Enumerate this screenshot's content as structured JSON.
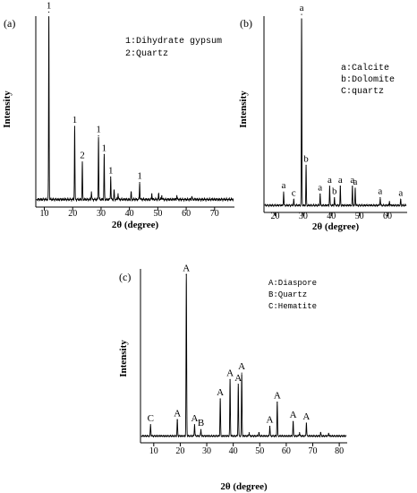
{
  "chart_data": [
    {
      "type": "line",
      "panel_label": "(a)",
      "xlabel": "2θ (degree)",
      "ylabel": "Intensity",
      "xlim": [
        7,
        77
      ],
      "xticks": [
        10,
        20,
        30,
        40,
        50,
        60,
        70
      ],
      "legend": [
        "1:Dihydrate gypsum",
        "2:Quartz"
      ],
      "legend_position": "top-right",
      "baseline_noise": 0.02,
      "peaks": [
        {
          "x": 11.6,
          "y": 1.0,
          "label": "1"
        },
        {
          "x": 20.7,
          "y": 0.39,
          "label": "1"
        },
        {
          "x": 23.4,
          "y": 0.2,
          "label": "2"
        },
        {
          "x": 26.6,
          "y": 0.04,
          "label": ""
        },
        {
          "x": 29.1,
          "y": 0.34,
          "label": "1"
        },
        {
          "x": 31.1,
          "y": 0.24,
          "label": "1"
        },
        {
          "x": 33.4,
          "y": 0.12,
          "label": "1"
        },
        {
          "x": 34.6,
          "y": 0.05,
          "label": ""
        },
        {
          "x": 36.0,
          "y": 0.03,
          "label": ""
        },
        {
          "x": 40.6,
          "y": 0.04,
          "label": ""
        },
        {
          "x": 43.6,
          "y": 0.09,
          "label": "1"
        },
        {
          "x": 47.9,
          "y": 0.03,
          "label": ""
        },
        {
          "x": 50.3,
          "y": 0.03,
          "label": ""
        },
        {
          "x": 51.4,
          "y": 0.02,
          "label": ""
        },
        {
          "x": 56.7,
          "y": 0.02,
          "label": ""
        },
        {
          "x": 62.0,
          "y": 0.015,
          "label": ""
        }
      ]
    },
    {
      "type": "line",
      "panel_label": "(b)",
      "xlabel": "2θ (degree)",
      "ylabel": "Intensity",
      "xlim": [
        16,
        67
      ],
      "xticks": [
        20,
        30,
        40,
        50,
        60
      ],
      "legend": [
        "a:Calcite",
        "b:Dolomite",
        "C:quartz"
      ],
      "legend_position": "top-right",
      "baseline_noise": 0.015,
      "peaks": [
        {
          "x": 23.0,
          "y": 0.07,
          "label": "a"
        },
        {
          "x": 26.6,
          "y": 0.03,
          "label": "c"
        },
        {
          "x": 29.4,
          "y": 1.0,
          "label": "a"
        },
        {
          "x": 31.0,
          "y": 0.21,
          "label": "b"
        },
        {
          "x": 36.0,
          "y": 0.06,
          "label": "a"
        },
        {
          "x": 39.4,
          "y": 0.1,
          "label": "a"
        },
        {
          "x": 41.1,
          "y": 0.04,
          "label": "b"
        },
        {
          "x": 43.2,
          "y": 0.1,
          "label": "a"
        },
        {
          "x": 47.5,
          "y": 0.1,
          "label": "a"
        },
        {
          "x": 48.5,
          "y": 0.09,
          "label": "a"
        },
        {
          "x": 57.4,
          "y": 0.04,
          "label": "a"
        },
        {
          "x": 60.7,
          "y": 0.02,
          "label": ""
        },
        {
          "x": 64.7,
          "y": 0.03,
          "label": "a"
        }
      ]
    },
    {
      "type": "line",
      "panel_label": "(c)",
      "xlabel": "2θ (degree)",
      "ylabel": "Intensity",
      "xlim": [
        5,
        83
      ],
      "xticks": [
        10,
        20,
        30,
        40,
        50,
        60,
        70,
        80
      ],
      "legend": [
        "A:Diaspore",
        "B:Quartz",
        "C:Hematite"
      ],
      "legend_position": "top-right",
      "baseline_noise": 0.015,
      "peaks": [
        {
          "x": 8.8,
          "y": 0.07,
          "label": "C"
        },
        {
          "x": 18.9,
          "y": 0.1,
          "label": "A"
        },
        {
          "x": 22.3,
          "y": 1.0,
          "label": "A"
        },
        {
          "x": 25.4,
          "y": 0.07,
          "label": "A"
        },
        {
          "x": 27.8,
          "y": 0.04,
          "label": "B"
        },
        {
          "x": 35.1,
          "y": 0.23,
          "label": "A"
        },
        {
          "x": 38.8,
          "y": 0.35,
          "label": "A"
        },
        {
          "x": 41.9,
          "y": 0.32,
          "label": "A"
        },
        {
          "x": 43.2,
          "y": 0.39,
          "label": "A"
        },
        {
          "x": 46.0,
          "y": 0.02,
          "label": ""
        },
        {
          "x": 49.7,
          "y": 0.02,
          "label": ""
        },
        {
          "x": 53.8,
          "y": 0.06,
          "label": "A"
        },
        {
          "x": 56.6,
          "y": 0.21,
          "label": "A"
        },
        {
          "x": 62.6,
          "y": 0.09,
          "label": "A"
        },
        {
          "x": 65.0,
          "y": 0.02,
          "label": ""
        },
        {
          "x": 67.6,
          "y": 0.08,
          "label": "A"
        },
        {
          "x": 73.0,
          "y": 0.02,
          "label": ""
        },
        {
          "x": 76.0,
          "y": 0.015,
          "label": ""
        }
      ]
    }
  ]
}
